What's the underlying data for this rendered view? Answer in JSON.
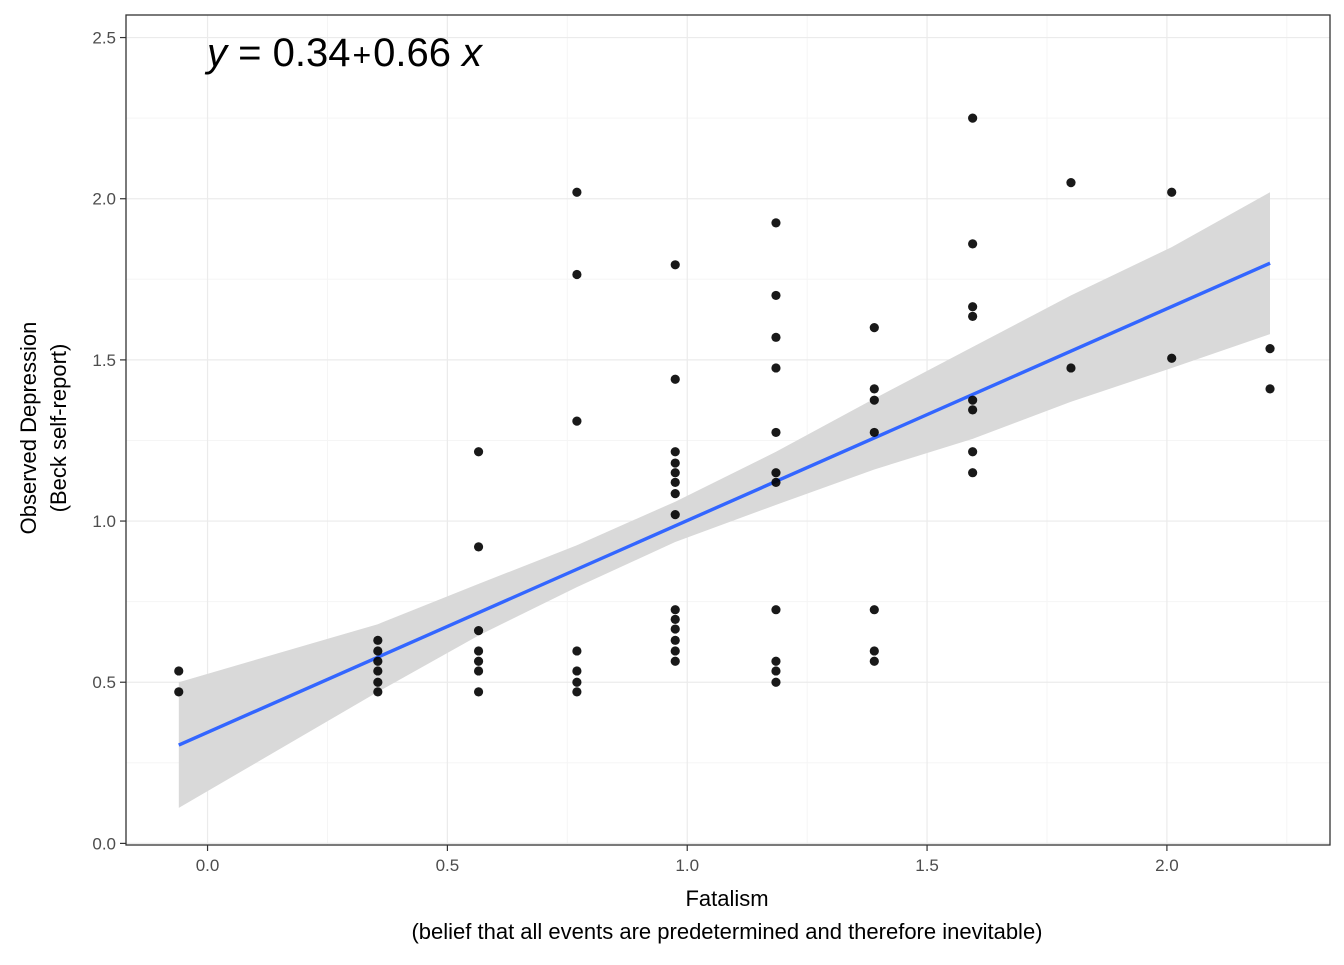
{
  "chart_data": {
    "type": "scatter",
    "title": "",
    "equation": {
      "y_symbol": "y",
      "equals": " = 0.34",
      "plus": "+",
      "coef": "0.66",
      "x_symbol": "x"
    },
    "xlabel": "Fatalism",
    "xlabel_sub": "(belief that all events are predetermined and therefore inevitable)",
    "ylabel": "Observed Depression",
    "ylabel_sub": "(Beck self-report)",
    "xlim": [
      -0.17,
      2.34
    ],
    "ylim": [
      -0.005,
      2.57
    ],
    "x_ticks": [
      0.0,
      0.5,
      1.0,
      1.5,
      2.0
    ],
    "x_tick_labels": [
      "0.0",
      "0.5",
      "1.0",
      "1.5",
      "2.0"
    ],
    "y_ticks": [
      0.0,
      0.5,
      1.0,
      1.5,
      2.0,
      2.5
    ],
    "y_tick_labels": [
      "0.0",
      "0.5",
      "1.0",
      "1.5",
      "2.0",
      "2.5"
    ],
    "grid": true,
    "legend": "none",
    "colors": {
      "points": "#000000",
      "fit_line": "#3366ff",
      "confidence_band": "#d9d9d9",
      "grid_major": "#ebebeb",
      "grid_minor": "#f5f5f5",
      "panel_border": "#333333"
    },
    "points": [
      {
        "x": -0.06,
        "y": 0.535
      },
      {
        "x": -0.06,
        "y": 0.47
      },
      {
        "x": 0.355,
        "y": 0.63
      },
      {
        "x": 0.355,
        "y": 0.597
      },
      {
        "x": 0.355,
        "y": 0.565
      },
      {
        "x": 0.355,
        "y": 0.535
      },
      {
        "x": 0.355,
        "y": 0.5
      },
      {
        "x": 0.355,
        "y": 0.47
      },
      {
        "x": 0.565,
        "y": 1.215
      },
      {
        "x": 0.565,
        "y": 0.92
      },
      {
        "x": 0.565,
        "y": 0.66
      },
      {
        "x": 0.565,
        "y": 0.597
      },
      {
        "x": 0.565,
        "y": 0.565
      },
      {
        "x": 0.565,
        "y": 0.535
      },
      {
        "x": 0.565,
        "y": 0.47
      },
      {
        "x": 0.77,
        "y": 2.02
      },
      {
        "x": 0.77,
        "y": 1.765
      },
      {
        "x": 0.77,
        "y": 1.31
      },
      {
        "x": 0.77,
        "y": 0.597
      },
      {
        "x": 0.77,
        "y": 0.535
      },
      {
        "x": 0.77,
        "y": 0.5
      },
      {
        "x": 0.77,
        "y": 0.47
      },
      {
        "x": 0.975,
        "y": 1.795
      },
      {
        "x": 0.975,
        "y": 1.44
      },
      {
        "x": 0.975,
        "y": 1.215
      },
      {
        "x": 0.975,
        "y": 1.18
      },
      {
        "x": 0.975,
        "y": 1.15
      },
      {
        "x": 0.975,
        "y": 1.12
      },
      {
        "x": 0.975,
        "y": 1.085
      },
      {
        "x": 0.975,
        "y": 1.02
      },
      {
        "x": 0.975,
        "y": 0.725
      },
      {
        "x": 0.975,
        "y": 0.695
      },
      {
        "x": 0.975,
        "y": 0.665
      },
      {
        "x": 0.975,
        "y": 0.63
      },
      {
        "x": 0.975,
        "y": 0.597
      },
      {
        "x": 0.975,
        "y": 0.565
      },
      {
        "x": 1.185,
        "y": 1.925
      },
      {
        "x": 1.185,
        "y": 1.7
      },
      {
        "x": 1.185,
        "y": 1.57
      },
      {
        "x": 1.185,
        "y": 1.475
      },
      {
        "x": 1.185,
        "y": 1.275
      },
      {
        "x": 1.185,
        "y": 1.15
      },
      {
        "x": 1.185,
        "y": 1.12
      },
      {
        "x": 1.185,
        "y": 0.725
      },
      {
        "x": 1.185,
        "y": 0.565
      },
      {
        "x": 1.185,
        "y": 0.535
      },
      {
        "x": 1.185,
        "y": 0.5
      },
      {
        "x": 1.39,
        "y": 1.6
      },
      {
        "x": 1.39,
        "y": 1.41
      },
      {
        "x": 1.39,
        "y": 1.375
      },
      {
        "x": 1.39,
        "y": 1.275
      },
      {
        "x": 1.39,
        "y": 0.725
      },
      {
        "x": 1.39,
        "y": 0.597
      },
      {
        "x": 1.39,
        "y": 0.565
      },
      {
        "x": 1.595,
        "y": 2.25
      },
      {
        "x": 1.595,
        "y": 1.86
      },
      {
        "x": 1.595,
        "y": 1.665
      },
      {
        "x": 1.595,
        "y": 1.635
      },
      {
        "x": 1.595,
        "y": 1.375
      },
      {
        "x": 1.595,
        "y": 1.345
      },
      {
        "x": 1.595,
        "y": 1.215
      },
      {
        "x": 1.595,
        "y": 1.15
      },
      {
        "x": 1.8,
        "y": 2.05
      },
      {
        "x": 1.8,
        "y": 1.475
      },
      {
        "x": 2.01,
        "y": 2.02
      },
      {
        "x": 2.01,
        "y": 1.505
      },
      {
        "x": 2.215,
        "y": 1.535
      },
      {
        "x": 2.215,
        "y": 1.41
      }
    ],
    "fit": {
      "x": [
        -0.06,
        2.215
      ],
      "y": [
        0.305,
        1.8
      ]
    },
    "confidence_band": {
      "x": [
        -0.06,
        0.355,
        0.565,
        0.77,
        0.975,
        1.185,
        1.39,
        1.595,
        1.8,
        2.01,
        2.215
      ],
      "lower": [
        0.11,
        0.47,
        0.645,
        0.795,
        0.935,
        1.05,
        1.16,
        1.255,
        1.37,
        1.475,
        1.58
      ],
      "upper": [
        0.5,
        0.68,
        0.805,
        0.925,
        1.06,
        1.215,
        1.38,
        1.54,
        1.7,
        1.85,
        2.02
      ]
    }
  }
}
